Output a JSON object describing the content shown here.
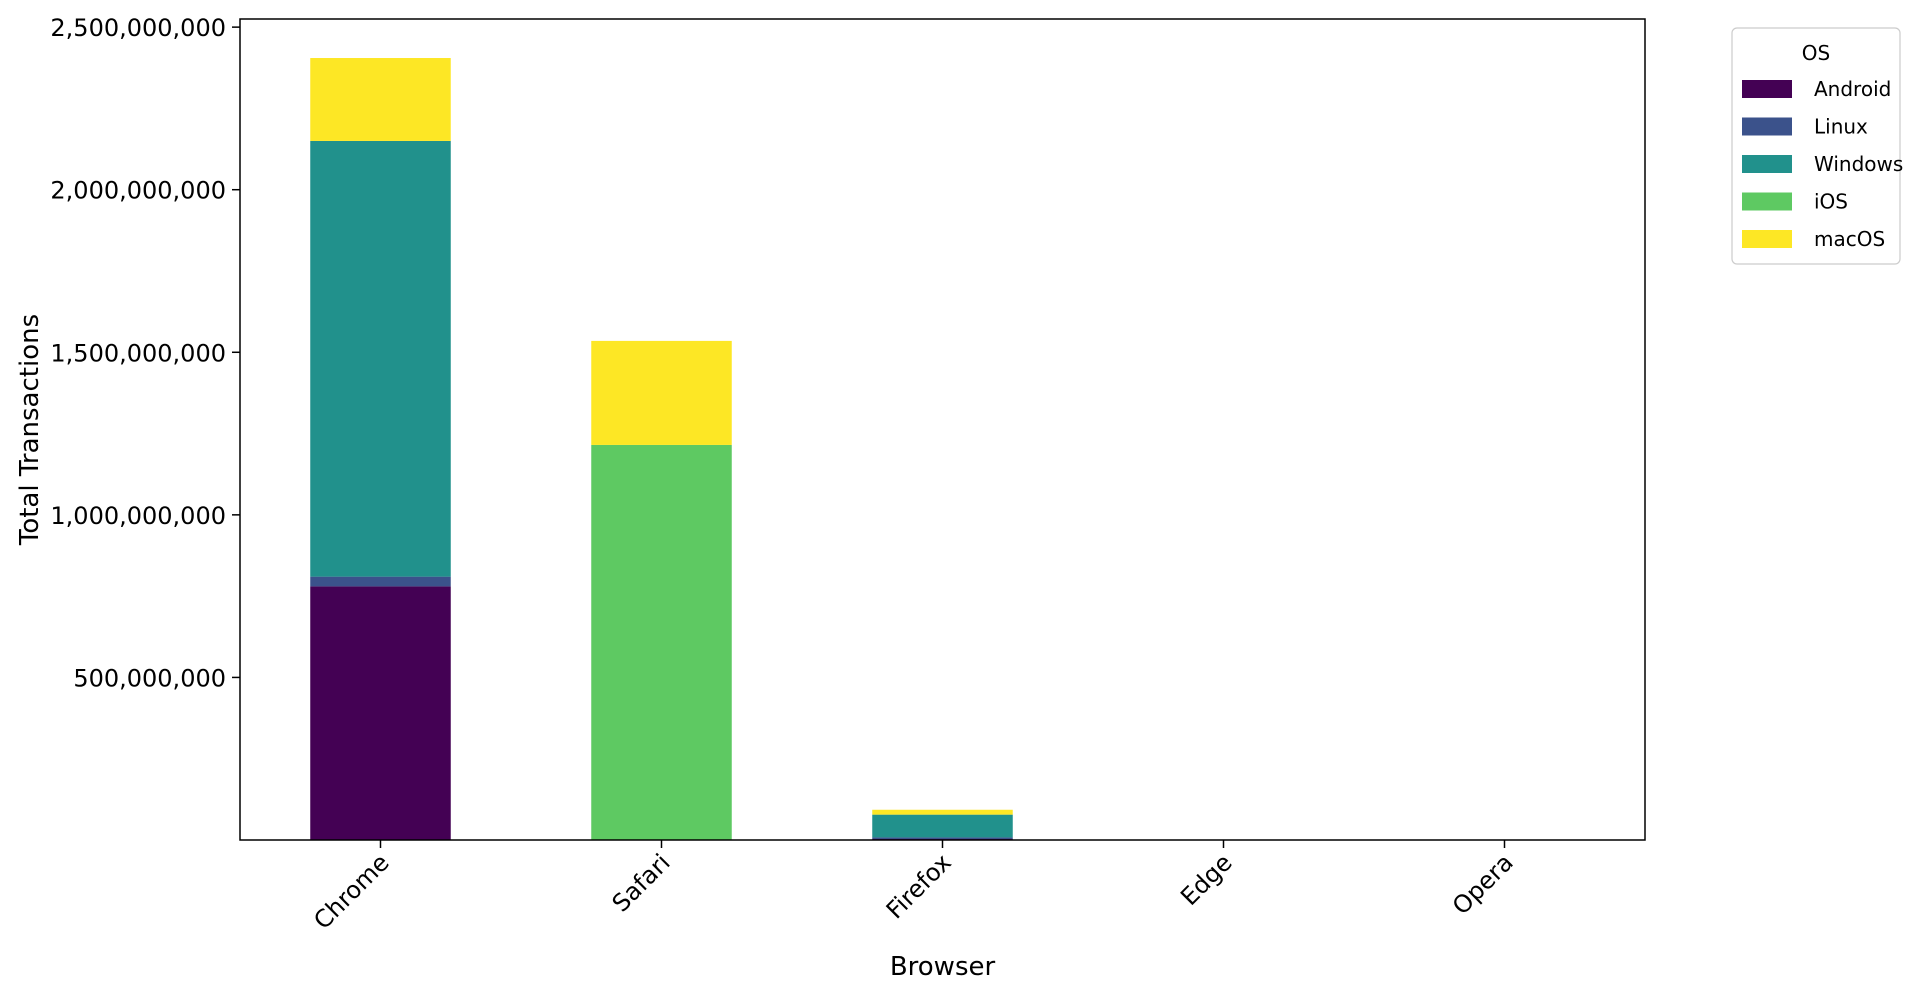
{
  "chart_data": {
    "type": "bar",
    "stacked": true,
    "categories": [
      "Chrome",
      "Safari",
      "Firefox",
      "Edge",
      "Opera"
    ],
    "series": [
      {
        "name": "Android",
        "color": "#440154",
        "values": [
          780000000,
          0,
          3000000,
          0,
          0
        ]
      },
      {
        "name": "Linux",
        "color": "#3b528b",
        "values": [
          30000000,
          0,
          5000000,
          0,
          0
        ]
      },
      {
        "name": "Windows",
        "color": "#21918c",
        "values": [
          1340000000,
          0,
          70000000,
          0,
          0
        ]
      },
      {
        "name": "iOS",
        "color": "#5ec962",
        "values": [
          0,
          1215000000,
          0,
          0,
          0
        ]
      },
      {
        "name": "macOS",
        "color": "#fde725",
        "values": [
          255000000,
          320000000,
          15000000,
          0,
          0
        ]
      }
    ],
    "xlabel": "Browser",
    "ylabel": "Total Transactions",
    "ylim": [
      0,
      2525000000
    ],
    "yticks": [
      500000000,
      1000000000,
      1500000000,
      2000000000,
      2500000000
    ],
    "ytick_labels": [
      "500,000,000",
      "1,000,000,000",
      "1,500,000,000",
      "2,000,000,000",
      "2,500,000,000"
    ],
    "legend": {
      "title": "OS",
      "placement": "outside-top-right"
    },
    "grid": false
  }
}
